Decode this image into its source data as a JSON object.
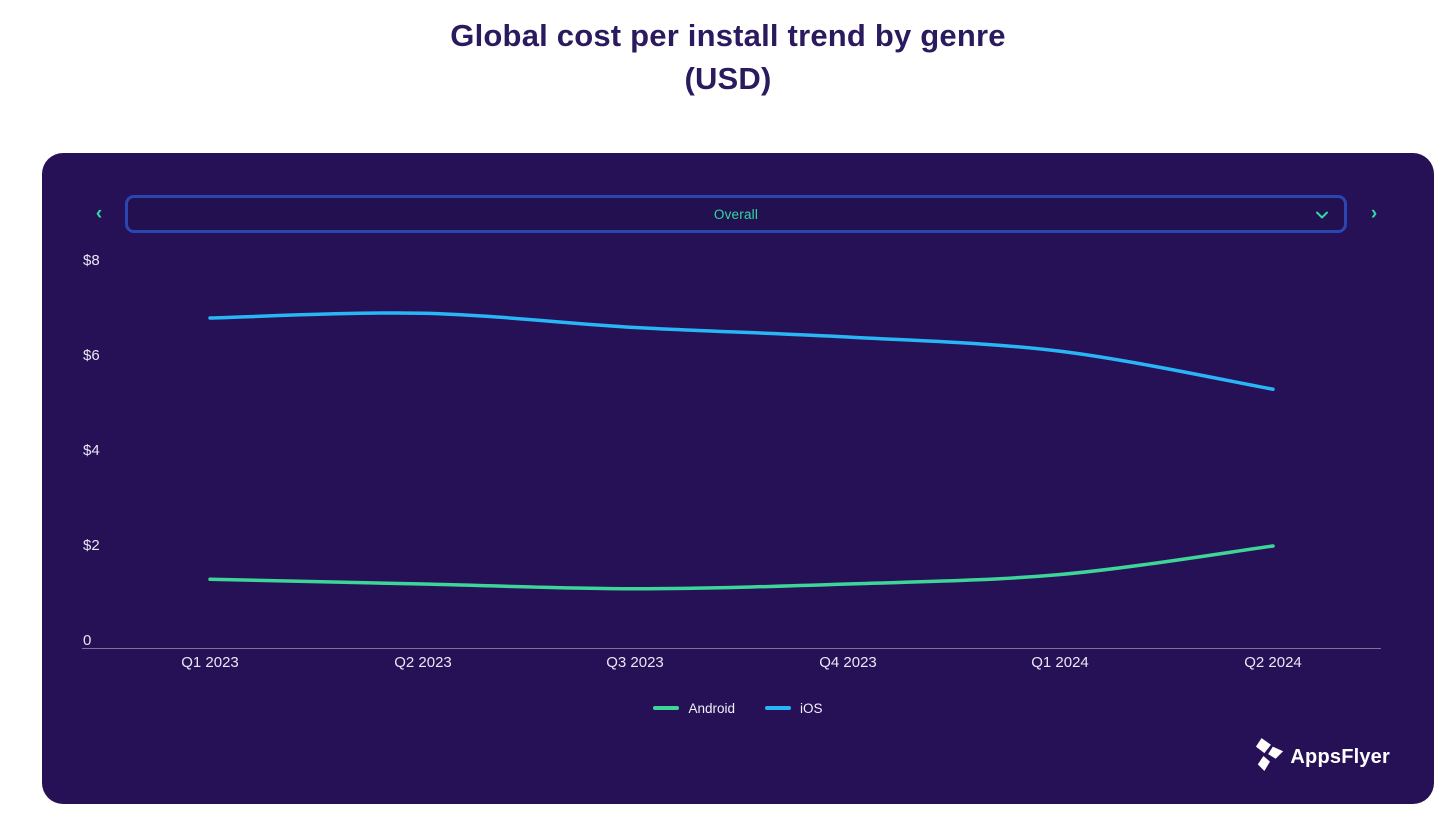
{
  "header": {
    "title_line1": "Global cost per install trend by genre",
    "title_line2": "(USD)"
  },
  "selector": {
    "value": "Overall",
    "prev_label": "‹",
    "next_label": "›"
  },
  "chart_data": {
    "type": "line",
    "title": "Global cost per install trend by genre (USD)",
    "categories": [
      "Q1 2023",
      "Q2 2023",
      "Q3 2023",
      "Q4 2023",
      "Q1 2024",
      "Q2 2024"
    ],
    "series": [
      {
        "name": "Android",
        "color": "#3ed598",
        "values": [
          1.3,
          1.2,
          1.1,
          1.2,
          1.4,
          2.0
        ]
      },
      {
        "name": "iOS",
        "color": "#29b6f6",
        "values": [
          6.8,
          6.9,
          6.6,
          6.4,
          6.1,
          5.3
        ]
      }
    ],
    "xlabel": "",
    "ylabel": "",
    "ylim": [
      0,
      8
    ],
    "y_ticks": [
      "$8",
      "$6",
      "$4",
      "$2",
      "0"
    ],
    "y_tick_values": [
      8,
      6,
      4,
      2,
      0
    ],
    "grid": false,
    "legend_position": "bottom"
  },
  "branding": {
    "logo_text": "AppsFlyer"
  },
  "colors": {
    "card_background": "#261156",
    "title_text": "#2b1a5e",
    "accent_teal": "#30d9a1",
    "selector_border": "#2a46b0",
    "axis_text": "#eae7f5",
    "android_line": "#3ed598",
    "ios_line": "#29b6f6"
  }
}
